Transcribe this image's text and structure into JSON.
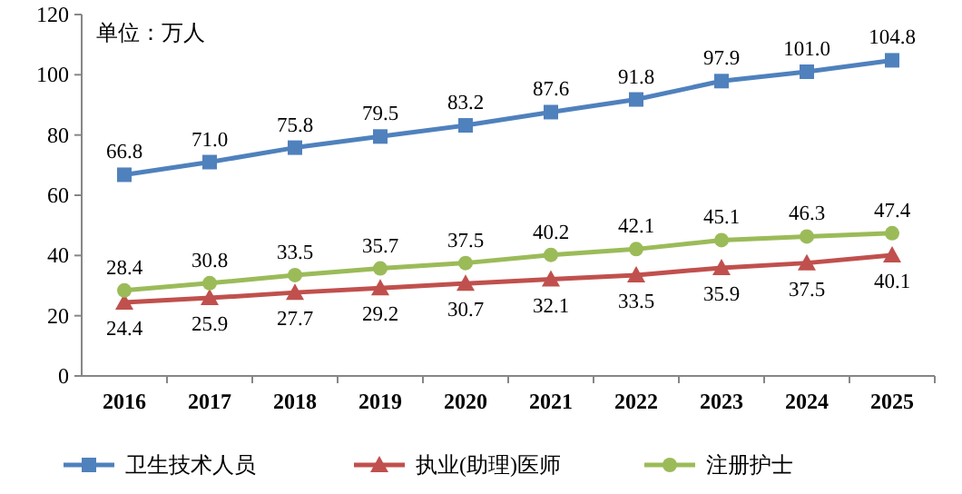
{
  "chart_data": {
    "type": "line",
    "annotations": [
      "单位：万人"
    ],
    "categories": [
      "2016",
      "2017",
      "2018",
      "2019",
      "2020",
      "2021",
      "2022",
      "2023",
      "2024",
      "2025"
    ],
    "series": [
      {
        "name": "卫生技术人员",
        "color": "#4f81bd",
        "marker": "square",
        "values": [
          66.8,
          71.0,
          75.8,
          79.5,
          83.2,
          87.6,
          91.8,
          97.9,
          101.0,
          104.8
        ],
        "value_labels": [
          "66.8",
          "71.0",
          "75.8",
          "79.5",
          "83.2",
          "87.6",
          "91.8",
          "97.9",
          "101.0",
          "104.8"
        ]
      },
      {
        "name": "执业(助理)医师",
        "color": "#c0504d",
        "marker": "triangle",
        "values": [
          24.4,
          25.9,
          27.7,
          29.2,
          30.7,
          32.1,
          33.5,
          35.9,
          37.5,
          40.1
        ],
        "value_labels": [
          "24.4",
          "25.9",
          "27.7",
          "29.2",
          "30.7",
          "32.1",
          "33.5",
          "35.9",
          "37.5",
          "40.1"
        ]
      },
      {
        "name": "注册护士",
        "color": "#9bbb59",
        "marker": "circle",
        "values": [
          28.4,
          30.8,
          33.5,
          35.7,
          37.5,
          40.2,
          42.1,
          45.1,
          46.3,
          47.4
        ],
        "value_labels": [
          "28.4",
          "30.8",
          "33.5",
          "35.7",
          "37.5",
          "40.2",
          "42.1",
          "45.1",
          "46.3",
          "47.4"
        ]
      }
    ],
    "ylim": [
      0,
      120
    ],
    "yticks": [
      0,
      20,
      40,
      60,
      80,
      100,
      120
    ],
    "grid": false,
    "legend": "bottom"
  }
}
